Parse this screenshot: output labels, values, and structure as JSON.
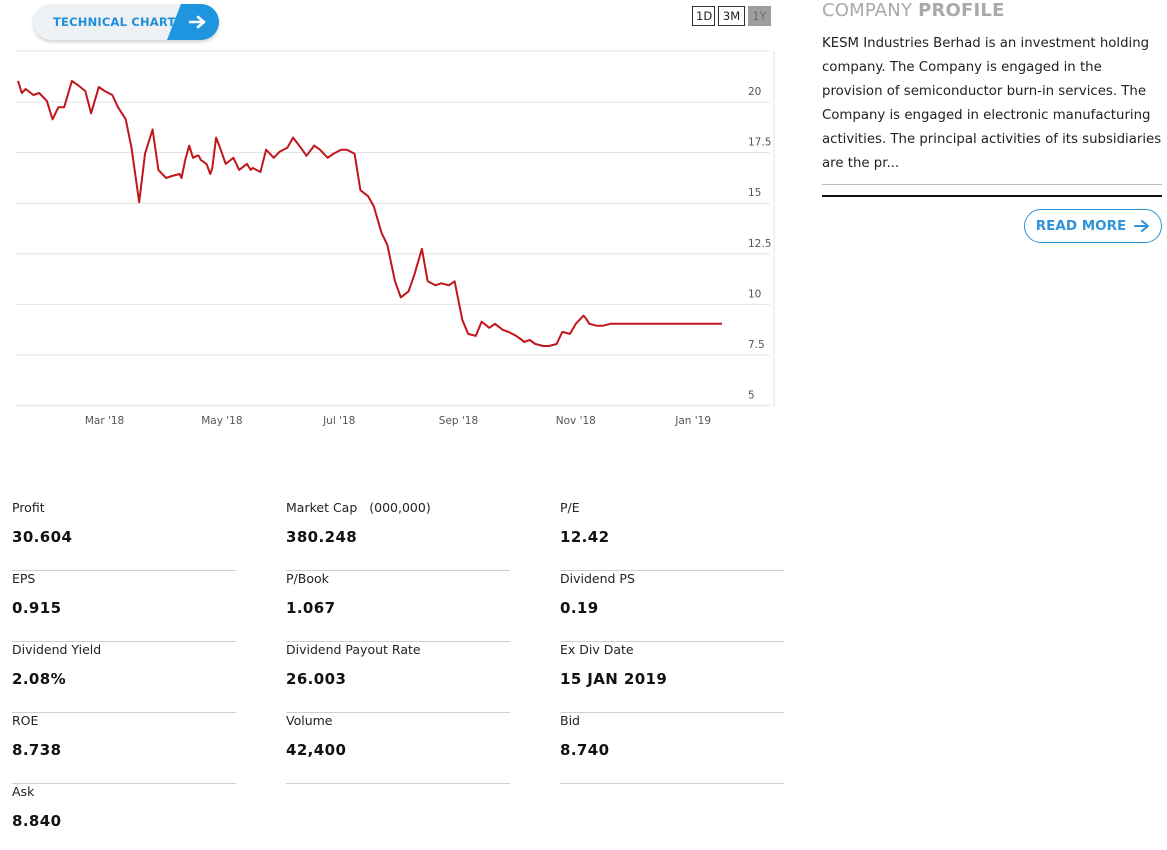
{
  "tech_chart": {
    "label": "TECHNICAL CHART",
    "icon": "arrow-right-icon",
    "accent": "#1f95e0"
  },
  "ranges": [
    {
      "label": "1D",
      "active": false
    },
    {
      "label": "3M",
      "active": false
    },
    {
      "label": "1Y",
      "active": true
    }
  ],
  "chart_data": {
    "type": "line",
    "title": "",
    "xlabel": "",
    "ylabel": "",
    "x_ticks": [
      "Mar '18",
      "May '18",
      "Jul '18",
      "Sep '18",
      "Nov '18",
      "Jan '19"
    ],
    "y_ticks": [
      "20",
      "17.5",
      "15",
      "12.5",
      "10",
      "7.5",
      "5"
    ],
    "ylim": [
      5,
      22
    ],
    "line_color": "#c0161c",
    "grid": true,
    "series": [
      {
        "x": [
          "2018-01-15",
          "2018-01-17",
          "2018-01-19",
          "2018-01-23",
          "2018-01-26",
          "2018-01-30",
          "2018-02-02",
          "2018-02-05",
          "2018-02-08",
          "2018-02-12",
          "2018-02-15",
          "2018-02-19",
          "2018-02-22",
          "2018-02-26",
          "2018-03-01",
          "2018-03-05",
          "2018-03-08",
          "2018-03-12",
          "2018-03-15",
          "2018-03-19",
          "2018-03-22",
          "2018-03-26",
          "2018-03-29",
          "2018-04-02",
          "2018-04-05",
          "2018-04-09",
          "2018-04-10",
          "2018-04-12",
          "2018-04-14",
          "2018-04-16",
          "2018-04-18",
          "2018-04-19",
          "2018-04-20",
          "2018-04-23",
          "2018-04-25",
          "2018-04-26",
          "2018-04-28",
          "2018-04-30",
          "2018-05-03",
          "2018-05-07",
          "2018-05-10",
          "2018-05-14",
          "2018-05-16",
          "2018-05-17",
          "2018-05-21",
          "2018-05-24",
          "2018-05-28",
          "2018-05-31",
          "2018-06-04",
          "2018-06-07",
          "2018-06-11",
          "2018-06-14",
          "2018-06-18",
          "2018-06-21",
          "2018-06-25",
          "2018-06-28",
          "2018-07-02",
          "2018-07-05",
          "2018-07-09",
          "2018-07-12",
          "2018-07-16",
          "2018-07-19",
          "2018-07-23",
          "2018-07-26",
          "2018-07-30",
          "2018-08-02",
          "2018-08-06",
          "2018-08-09",
          "2018-08-13",
          "2018-08-16",
          "2018-08-20",
          "2018-08-23",
          "2018-08-27",
          "2018-08-30",
          "2018-09-03",
          "2018-09-06",
          "2018-09-10",
          "2018-09-13",
          "2018-09-17",
          "2018-09-20",
          "2018-09-24",
          "2018-09-27",
          "2018-10-01",
          "2018-10-04",
          "2018-10-05",
          "2018-10-08",
          "2018-10-11",
          "2018-10-15",
          "2018-10-18",
          "2018-10-22",
          "2018-10-25",
          "2018-10-29",
          "2018-11-01",
          "2018-11-05",
          "2018-11-06",
          "2018-11-08",
          "2018-11-12",
          "2018-11-15",
          "2018-11-19",
          "2018-11-22",
          "2018-11-26",
          "2018-11-29",
          "2018-12-03",
          "2018-12-06",
          "2018-12-10",
          "2018-12-13",
          "2018-12-17",
          "2018-12-20",
          "2018-12-24",
          "2018-12-27",
          "2018-12-31",
          "2019-01-03",
          "2019-01-07",
          "2019-01-09",
          "2019-01-11",
          "2019-01-14",
          "2019-01-16"
        ],
        "y": [
          20.5,
          19.9,
          20.1,
          19.8,
          19.9,
          19.5,
          18.6,
          19.2,
          19.2,
          20.5,
          20.3,
          20.0,
          18.9,
          20.2,
          20.0,
          19.8,
          19.2,
          18.6,
          17.2,
          14.5,
          16.9,
          18.1,
          16.1,
          15.7,
          15.8,
          15.9,
          15.7,
          16.6,
          17.3,
          16.7,
          16.8,
          16.8,
          16.6,
          16.4,
          15.9,
          16.2,
          17.7,
          17.2,
          16.4,
          16.7,
          16.1,
          16.4,
          16.1,
          16.2,
          16.0,
          17.1,
          16.7,
          17.0,
          17.2,
          17.7,
          17.2,
          16.8,
          17.3,
          17.1,
          16.7,
          16.9,
          17.1,
          17.1,
          16.9,
          15.1,
          14.8,
          14.3,
          13.0,
          12.4,
          10.6,
          9.8,
          10.1,
          10.9,
          12.2,
          10.6,
          10.4,
          10.5,
          10.4,
          10.6,
          8.7,
          8.0,
          7.9,
          8.6,
          8.3,
          8.5,
          8.2,
          8.1,
          7.9,
          7.7,
          7.6,
          7.7,
          7.5,
          7.4,
          7.4,
          7.5,
          8.1,
          8.0,
          8.5,
          8.9,
          8.8,
          8.5,
          8.4,
          8.4,
          8.5,
          8.5,
          8.5,
          8.5,
          8.5,
          8.5,
          8.5,
          8.5,
          8.5,
          8.5,
          8.5,
          8.5,
          8.5,
          8.5,
          8.5,
          8.5,
          8.5,
          8.5,
          8.5
        ]
      }
    ]
  },
  "profile": {
    "title_light": "COMPANY",
    "title_bold": "PROFILE",
    "description": "KESM Industries Berhad is an investment holding company. The Company is engaged in the provision of semiconductor burn-in services. The Company is engaged in electronic manufacturing activities. The principal activities of its subsidiaries are the pr...",
    "read_more": "READ MORE",
    "read_more_icon": "arrow-right-icon",
    "accent": "#2f95d8"
  },
  "stats": [
    {
      "key": "Profit",
      "sub": "",
      "value": "30.604"
    },
    {
      "key": "Market Cap",
      "sub": "(000,000)",
      "value": "380.248"
    },
    {
      "key": "P/E",
      "sub": "",
      "value": "12.42"
    },
    {
      "key": "EPS",
      "sub": "",
      "value": "0.915"
    },
    {
      "key": "P/Book",
      "sub": "",
      "value": "1.067"
    },
    {
      "key": "Dividend PS",
      "sub": "",
      "value": "0.19"
    },
    {
      "key": "Dividend Yield",
      "sub": "",
      "value": "2.08%"
    },
    {
      "key": "Dividend Payout Rate",
      "sub": "",
      "value": "26.003"
    },
    {
      "key": "Ex Div Date",
      "sub": "",
      "value": "15 JAN 2019"
    },
    {
      "key": "ROE",
      "sub": "",
      "value": "8.738"
    },
    {
      "key": "Volume",
      "sub": "",
      "value": "42,400"
    },
    {
      "key": "Bid",
      "sub": "",
      "value": "8.740"
    },
    {
      "key": "Ask",
      "sub": "",
      "value": "8.840"
    }
  ]
}
